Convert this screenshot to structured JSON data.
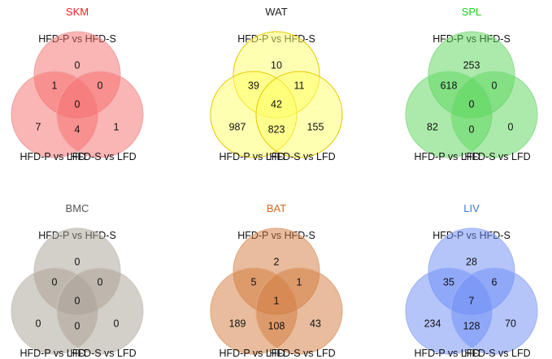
{
  "figure": {
    "panels": [
      {
        "title": "SKM",
        "title_color": "#ff1f1f",
        "fill_color": "#f56c6c",
        "stroke_color": "#f0a0a0",
        "sets": {
          "top": "HFD-P vs HFD-S",
          "left": "HFD-P vs LFD",
          "right": "HFD-S vs LFD"
        },
        "counts": {
          "top_only": "0",
          "top_left": "1",
          "top_right": "0",
          "all": "0",
          "left_only": "7",
          "left_right": "4",
          "right_only": "1"
        }
      },
      {
        "title": "WAT",
        "title_color": "#222222",
        "fill_color": "#ffff66",
        "stroke_color": "#e6c800",
        "sets": {
          "top": "HFD-P vs HFD-S",
          "left": "HFD-P vs LFD",
          "right": "HFD-S vs LFD"
        },
        "counts": {
          "top_only": "10",
          "top_left": "39",
          "top_right": "11",
          "all": "42",
          "left_only": "987",
          "left_right": "823",
          "right_only": "155"
        }
      },
      {
        "title": "SPL",
        "title_color": "#22cc22",
        "fill_color": "#5ad55a",
        "stroke_color": "#8edc8e",
        "sets": {
          "top": "HFD-P vs HFD-S",
          "left": "HFD-P vs LFD",
          "right": "HFD-S vs LFD"
        },
        "counts": {
          "top_only": "253",
          "top_left": "618",
          "top_right": "0",
          "all": "0",
          "left_only": "82",
          "left_right": "0",
          "right_only": "0"
        }
      },
      {
        "title": "BMC",
        "title_color": "#555555",
        "fill_color": "#a89f94",
        "stroke_color": "#cdc6bd",
        "sets": {
          "top": "HFD-P vs HFD-S",
          "left": "HFD-P vs LFD",
          "right": "HFD-S vs LFD"
        },
        "counts": {
          "top_only": "0",
          "top_left": "0",
          "top_right": "0",
          "all": "0",
          "left_only": "0",
          "left_right": "0",
          "right_only": "0"
        }
      },
      {
        "title": "BAT",
        "title_color": "#d2691e",
        "fill_color": "#d27a3c",
        "stroke_color": "#e2a57a",
        "sets": {
          "top": "HFD-P vs HFD-S",
          "left": "HFD-P vs LFD",
          "right": "HFD-S vs LFD"
        },
        "counts": {
          "top_only": "2",
          "top_left": "5",
          "top_right": "1",
          "all": "1",
          "left_only": "189",
          "left_right": "108",
          "right_only": "43"
        }
      },
      {
        "title": "LIV",
        "title_color": "#3a78e0",
        "fill_color": "#6b8cf5",
        "stroke_color": "#9db2f5",
        "sets": {
          "top": "HFD-P vs HFD-S",
          "left": "HFD-P vs LFD",
          "right": "HFD-S vs LFD"
        },
        "counts": {
          "top_only": "28",
          "top_left": "35",
          "top_right": "6",
          "all": "7",
          "left_only": "234",
          "left_right": "128",
          "right_only": "70"
        }
      }
    ]
  }
}
